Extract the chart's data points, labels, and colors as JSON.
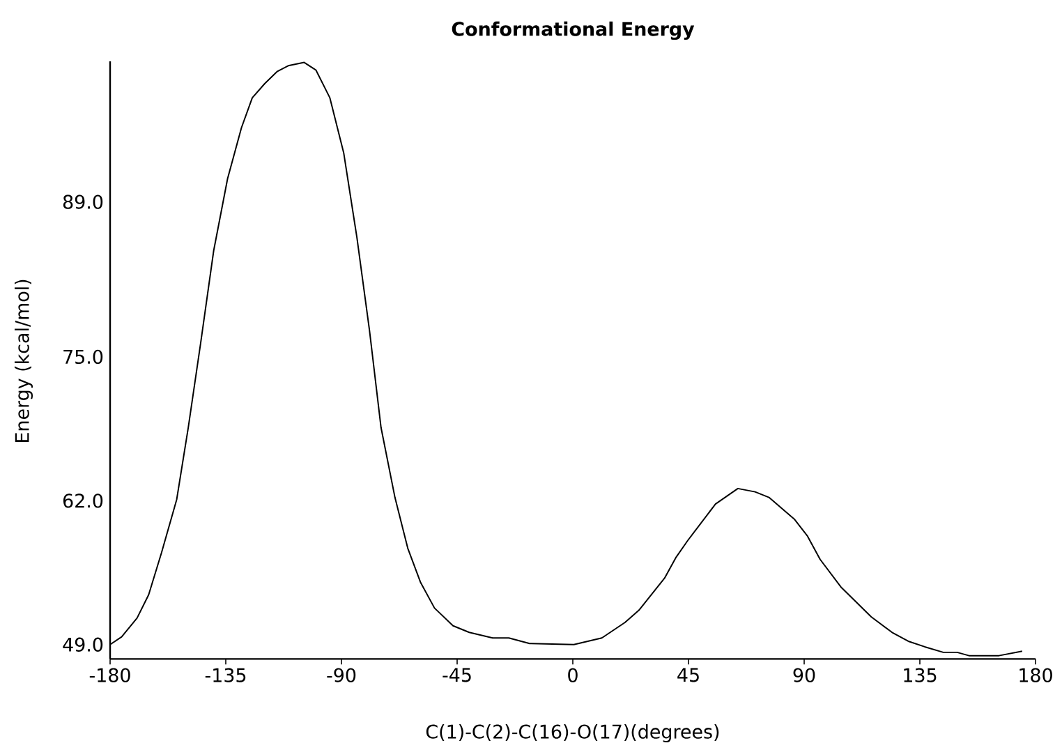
{
  "chart_data": {
    "type": "line",
    "title": "Conformational Energy",
    "xlabel": "C(1)-C(2)-C(16)-O(17)(degrees)",
    "ylabel": "Energy (kcal/mol)",
    "color": "#000000",
    "x": [
      -180,
      -175.5,
      -169.5,
      -165,
      -160,
      -154.1,
      -149.6,
      -144.8,
      -139.7,
      -134.3,
      -128.9,
      -124.7,
      -119.8,
      -114.9,
      -110.7,
      -104.5,
      -99.9,
      -94.5,
      -89.1,
      -84.0,
      -79.1,
      -74.6,
      -69.2,
      -64.2,
      -59.2,
      -53.8,
      -46.6,
      -40.3,
      -31.2,
      -24.9,
      -16.8,
      0.4,
      11.3,
      20.3,
      25.7,
      35.7,
      40.2,
      44.7,
      55.5,
      64.2,
      70.9,
      76.3,
      86.3,
      91.3,
      96.2,
      104.3,
      116.1,
      124.2,
      130.5,
      136.9,
      144.1,
      149.5,
      154.1,
      165.8,
      174.8
    ],
    "values": [
      49.0,
      49.7,
      51.4,
      53.5,
      57.3,
      62.1,
      68.6,
      76.2,
      84.6,
      91.1,
      95.7,
      98.4,
      99.7,
      100.8,
      101.3,
      101.6,
      100.9,
      98.4,
      93.4,
      85.8,
      77.4,
      68.6,
      62.3,
      57.7,
      54.6,
      52.3,
      50.7,
      50.1,
      49.6,
      49.6,
      49.1,
      49.0,
      49.6,
      51.0,
      52.1,
      55.0,
      56.9,
      58.4,
      61.7,
      63.1,
      62.8,
      62.3,
      60.3,
      58.8,
      56.7,
      54.2,
      51.5,
      50.1,
      49.3,
      48.8,
      48.3,
      48.3,
      48.0,
      48.0,
      48.4
    ],
    "xlim": [
      -180,
      180
    ],
    "ylim": [
      47.7,
      101.7
    ],
    "xticks": [
      -180,
      -135,
      -90,
      -45,
      0,
      45,
      90,
      135,
      180
    ],
    "yticks": [
      {
        "value": 49,
        "label": "49.0"
      },
      {
        "value": 62,
        "label": "62.0"
      },
      {
        "value": 75,
        "label": "75.0"
      },
      {
        "value": 89,
        "label": "89.0"
      }
    ]
  }
}
